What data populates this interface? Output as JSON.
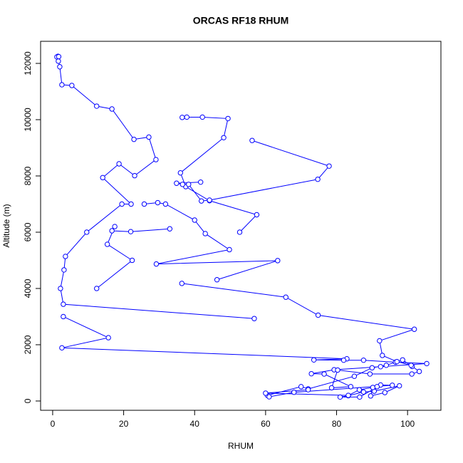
{
  "chart_data": {
    "type": "line",
    "title": "ORCAS RF18 RHUM",
    "x_label": "RHUM",
    "y_label": "Altitude (m)",
    "color": "#0000ff",
    "marker": "open-circle",
    "grid": false,
    "xlim": [
      -3.4,
      109.4
    ],
    "ylim": [
      -330,
      12785
    ],
    "xticks": [
      0,
      20,
      40,
      60,
      80,
      100
    ],
    "yticks": [
      0,
      2000,
      4000,
      6000,
      8000,
      10000,
      12000
    ],
    "x": [
      1.5,
      1.2,
      1.7,
      1.6,
      2.0,
      2.6,
      5.4,
      12.4,
      16.7,
      22.9,
      27.1,
      29.1,
      23.1,
      18.7,
      14.1,
      22.1,
      19.5,
      9.6,
      3.6,
      3.2,
      2.2,
      3.0,
      56.8,
      null,
      3.0,
      15.7,
      2.6,
      82.9,
      73.6,
      82,
      87.6,
      96.6,
      105.4,
      92.4,
      79.3,
      72.9,
      76.5,
      84,
      78.6,
      80.3,
      89.4,
      101.2,
      103.3,
      101.3,
      98.6,
      94,
      90,
      85,
      72,
      70,
      60.5,
      61,
      68,
      95.7,
      92.4,
      86.5,
      81,
      83.3,
      87.6,
      90.6,
      97.7,
      93.6,
      89.6,
      90.2,
      91.4,
      86.4,
      83.3,
      60,
      72,
      null,
      36.5,
      37.8,
      42.2,
      49.4,
      48.2,
      36,
      37.5,
      44.2,
      57.5,
      52.7,
      null,
      56.2,
      77.9,
      74.7,
      44.2,
      41.9,
      38.3,
      36.6,
      34.9,
      41.7,
      null,
      12.4,
      22.4,
      15.4,
      17.5,
      16.7,
      22.0,
      33.0,
      null,
      25.8,
      29.6,
      31.8,
      40,
      43,
      49.8,
      29.2,
      63.4,
      46.3,
      null,
      36.4,
      65.7,
      74.8,
      101.9,
      92.1,
      92.9,
      97,
      101
    ],
    "values": [
      12250,
      12230,
      12240,
      12080,
      11880,
      11240,
      11215,
      10480,
      10380,
      9300,
      9380,
      8580,
      8010,
      8430,
      7940,
      7000,
      7000,
      6000,
      5140,
      4660,
      4000,
      3440,
      2930,
      null,
      3000,
      2250,
      1890,
      1500,
      1460,
      1450,
      1450,
      1380,
      1330,
      1220,
      1110,
      970,
      960,
      510,
      470,
      1100,
      960,
      960,
      1050,
      1230,
      1460,
      1270,
      1180,
      880,
      430,
      510,
      200,
      150,
      310,
      560,
      570,
      140,
      140,
      190,
      320,
      350,
      540,
      300,
      180,
      480,
      510,
      400,
      200,
      280,
      400,
      null,
      10080,
      10090,
      10090,
      10040,
      9360,
      8110,
      7620,
      7120,
      6620,
      6000,
      null,
      9260,
      8350,
      7880,
      7140,
      7110,
      7700,
      7700,
      7740,
      7780,
      null,
      4000,
      5000,
      5570,
      6200,
      6050,
      6020,
      6120,
      null,
      7000,
      7050,
      7000,
      6430,
      5950,
      5380,
      4870,
      4990,
      4310,
      null,
      4180,
      3690,
      3050,
      2550,
      2140,
      1620,
      1400,
      1270
    ]
  }
}
